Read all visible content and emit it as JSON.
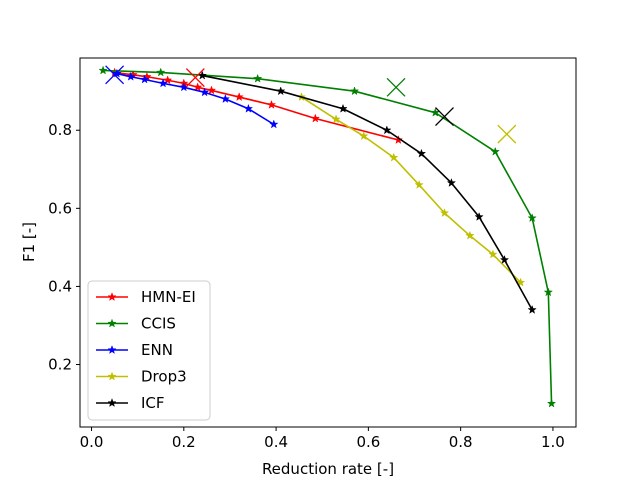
{
  "chart_data": {
    "type": "line",
    "title": "",
    "xlabel": "Reduction rate [-]",
    "ylabel": "F1 [-]",
    "xlim": [
      -0.025,
      1.05
    ],
    "ylim": [
      0.04,
      0.985
    ],
    "xticks": [
      0.0,
      0.2,
      0.4,
      0.6,
      0.8,
      1.0
    ],
    "xtick_labels": [
      "0.0",
      "0.2",
      "0.4",
      "0.6",
      "0.8",
      "1.0"
    ],
    "yticks": [
      0.2,
      0.4,
      0.6,
      0.8
    ],
    "ytick_labels": [
      "0.2",
      "0.4",
      "0.6",
      "0.8"
    ],
    "grid": false,
    "legend_position": "lower-left",
    "series": [
      {
        "name": "HMN-EI",
        "color": "#ff0000",
        "x": [
          0.05,
          0.09,
          0.12,
          0.165,
          0.2,
          0.23,
          0.26,
          0.32,
          0.39,
          0.485,
          0.665
        ],
        "y": [
          0.948,
          0.942,
          0.937,
          0.928,
          0.92,
          0.91,
          0.902,
          0.885,
          0.865,
          0.83,
          0.775
        ],
        "optimum": [
          0.225,
          0.935
        ]
      },
      {
        "name": "CCIS",
        "color": "#008000",
        "x": [
          0.025,
          0.15,
          0.36,
          0.57,
          0.745,
          0.875,
          0.955,
          0.99,
          0.997
        ],
        "y": [
          0.953,
          0.948,
          0.932,
          0.9,
          0.845,
          0.745,
          0.575,
          0.385,
          0.1
        ],
        "optimum": [
          0.66,
          0.91
        ]
      },
      {
        "name": "ENN",
        "color": "#0000ff",
        "x": [
          0.055,
          0.085,
          0.115,
          0.155,
          0.2,
          0.245,
          0.29,
          0.34,
          0.395
        ],
        "y": [
          0.945,
          0.937,
          0.93,
          0.92,
          0.91,
          0.897,
          0.88,
          0.855,
          0.815
        ],
        "optimum": [
          0.05,
          0.942
        ]
      },
      {
        "name": "Drop3",
        "color": "#bfbf00",
        "x": [
          0.455,
          0.53,
          0.59,
          0.655,
          0.71,
          0.765,
          0.82,
          0.87,
          0.93
        ],
        "y": [
          0.885,
          0.828,
          0.785,
          0.73,
          0.66,
          0.588,
          0.53,
          0.482,
          0.41
        ],
        "optimum": [
          0.9,
          0.79
        ]
      },
      {
        "name": "ICF",
        "color": "#000000",
        "x": [
          0.24,
          0.41,
          0.545,
          0.64,
          0.715,
          0.78,
          0.84,
          0.895,
          0.955
        ],
        "y": [
          0.94,
          0.9,
          0.855,
          0.8,
          0.74,
          0.665,
          0.578,
          0.468,
          0.34
        ],
        "optimum": [
          0.765,
          0.835
        ]
      }
    ]
  }
}
